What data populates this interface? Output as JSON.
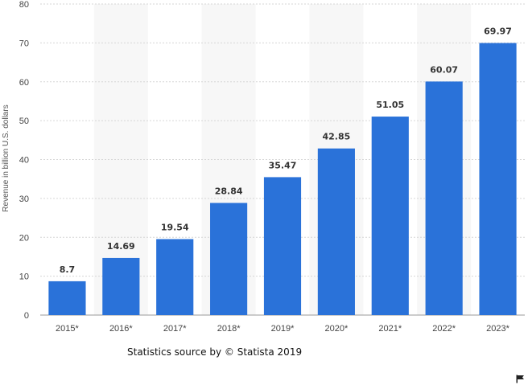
{
  "chart_data": {
    "type": "bar",
    "categories": [
      "2015*",
      "2016*",
      "2017*",
      "2018*",
      "2019*",
      "2020*",
      "2021*",
      "2022*",
      "2023*"
    ],
    "values": [
      8.7,
      14.69,
      19.54,
      28.84,
      35.47,
      42.85,
      51.05,
      60.07,
      69.97
    ],
    "data_labels": [
      "8.7",
      "14.69",
      "19.54",
      "28.84",
      "35.47",
      "42.85",
      "51.05",
      "60.07",
      "69.97"
    ],
    "title": "",
    "xlabel": "",
    "ylabel": "Revenue in billion U.S. dollars",
    "ylim": [
      0,
      80
    ],
    "yticks": [
      0,
      10,
      20,
      30,
      40,
      50,
      60,
      70,
      80
    ],
    "grid": true,
    "bar_color": "#2a72d9",
    "alt_band_color": "#f7f7f7"
  },
  "footer": {
    "source_prefix": "Statistics source by",
    "source_suffix": " Statista 2019",
    "copyright_symbol": "©"
  },
  "icons": {
    "flag": "flag-icon"
  }
}
